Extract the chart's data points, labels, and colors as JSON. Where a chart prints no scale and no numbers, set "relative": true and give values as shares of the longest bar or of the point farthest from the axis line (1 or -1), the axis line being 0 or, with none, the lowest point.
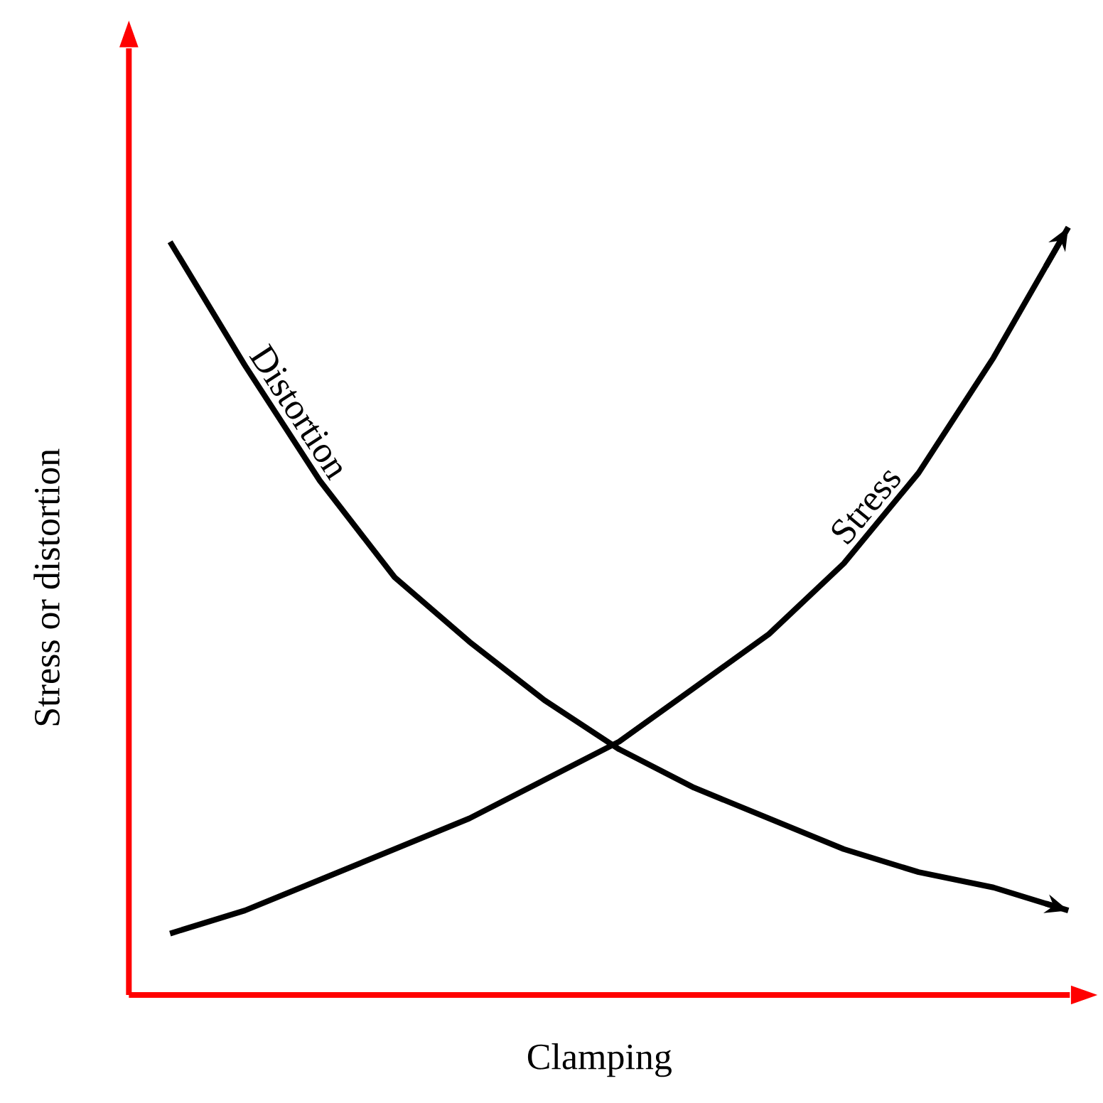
{
  "chart_data": {
    "type": "line",
    "relative": true,
    "xlabel": "Clamping",
    "ylabel": "Stress or distortion",
    "categories": [
      null,
      null,
      null,
      null,
      null,
      null,
      null,
      null,
      null,
      null,
      null,
      null,
      null
    ],
    "series": [
      {
        "name": "Distortion",
        "color": "#000000",
        "values": [
          0.981,
          0.82,
          0.67,
          0.544,
          0.46,
          0.384,
          0.32,
          0.27,
          0.23,
          0.19,
          0.16,
          0.14,
          0.11
        ]
      },
      {
        "name": "Stress",
        "color": "#000000",
        "values": [
          0.08,
          0.11,
          0.15,
          0.19,
          0.23,
          0.28,
          0.33,
          0.4,
          0.47,
          0.562,
          0.68,
          0.83,
          1.0
        ]
      }
    ],
    "marker": "none",
    "line_style": "solid"
  }
}
